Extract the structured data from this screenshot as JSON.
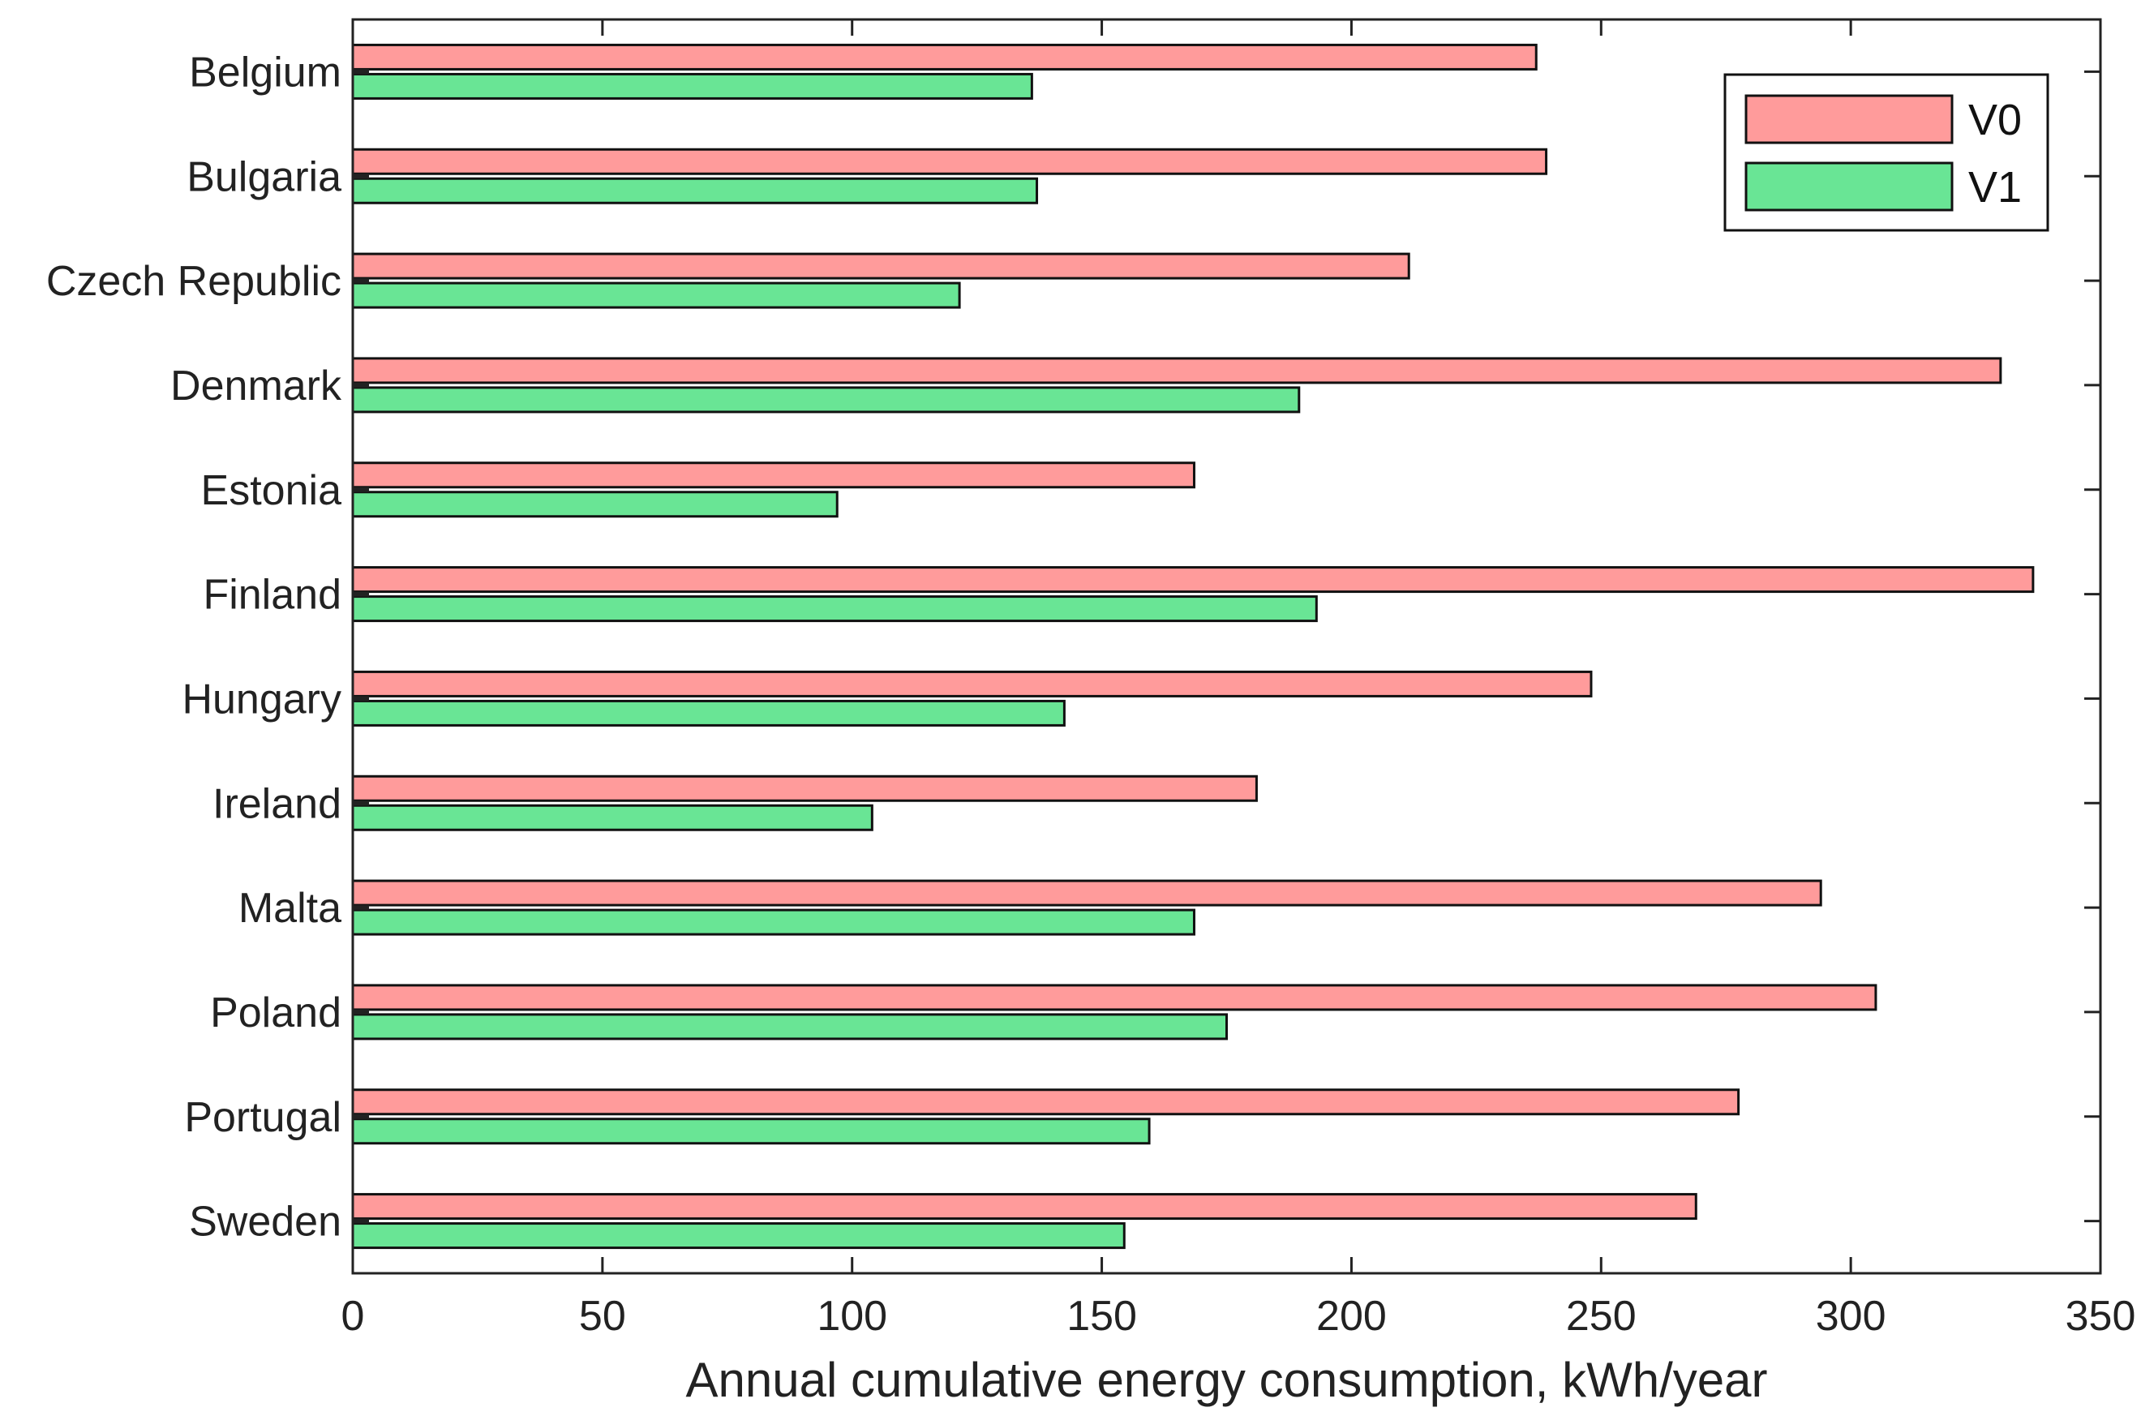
{
  "chart_data": {
    "type": "bar",
    "orientation": "horizontal",
    "title": "",
    "xlabel": "Annual cumulative energy consumption, kWh/year",
    "ylabel": "",
    "xlim": [
      0,
      350
    ],
    "xticks": [
      0,
      50,
      100,
      150,
      200,
      250,
      300,
      350
    ],
    "xtick_labels": [
      "0",
      "50",
      "100",
      "150",
      "200",
      "250",
      "300",
      "350"
    ],
    "categories": [
      "Belgium",
      "Bulgaria",
      "Czech Republic",
      "Denmark",
      "Estonia",
      "Finland",
      "Hungary",
      "Ireland",
      "Malta",
      "Poland",
      "Portugal",
      "Sweden"
    ],
    "series": [
      {
        "name": "V0",
        "color": "#ff9b9b",
        "values": [
          237,
          239,
          211.5,
          330,
          168.5,
          336.5,
          248,
          181,
          294,
          305,
          277.5,
          269
        ]
      },
      {
        "name": "V1",
        "color": "#69e595",
        "values": [
          136,
          137,
          121.5,
          189.5,
          97,
          193,
          142.5,
          104,
          168.5,
          175,
          159.5,
          154.5
        ]
      }
    ],
    "legend_position": "top-right",
    "grid": false
  }
}
